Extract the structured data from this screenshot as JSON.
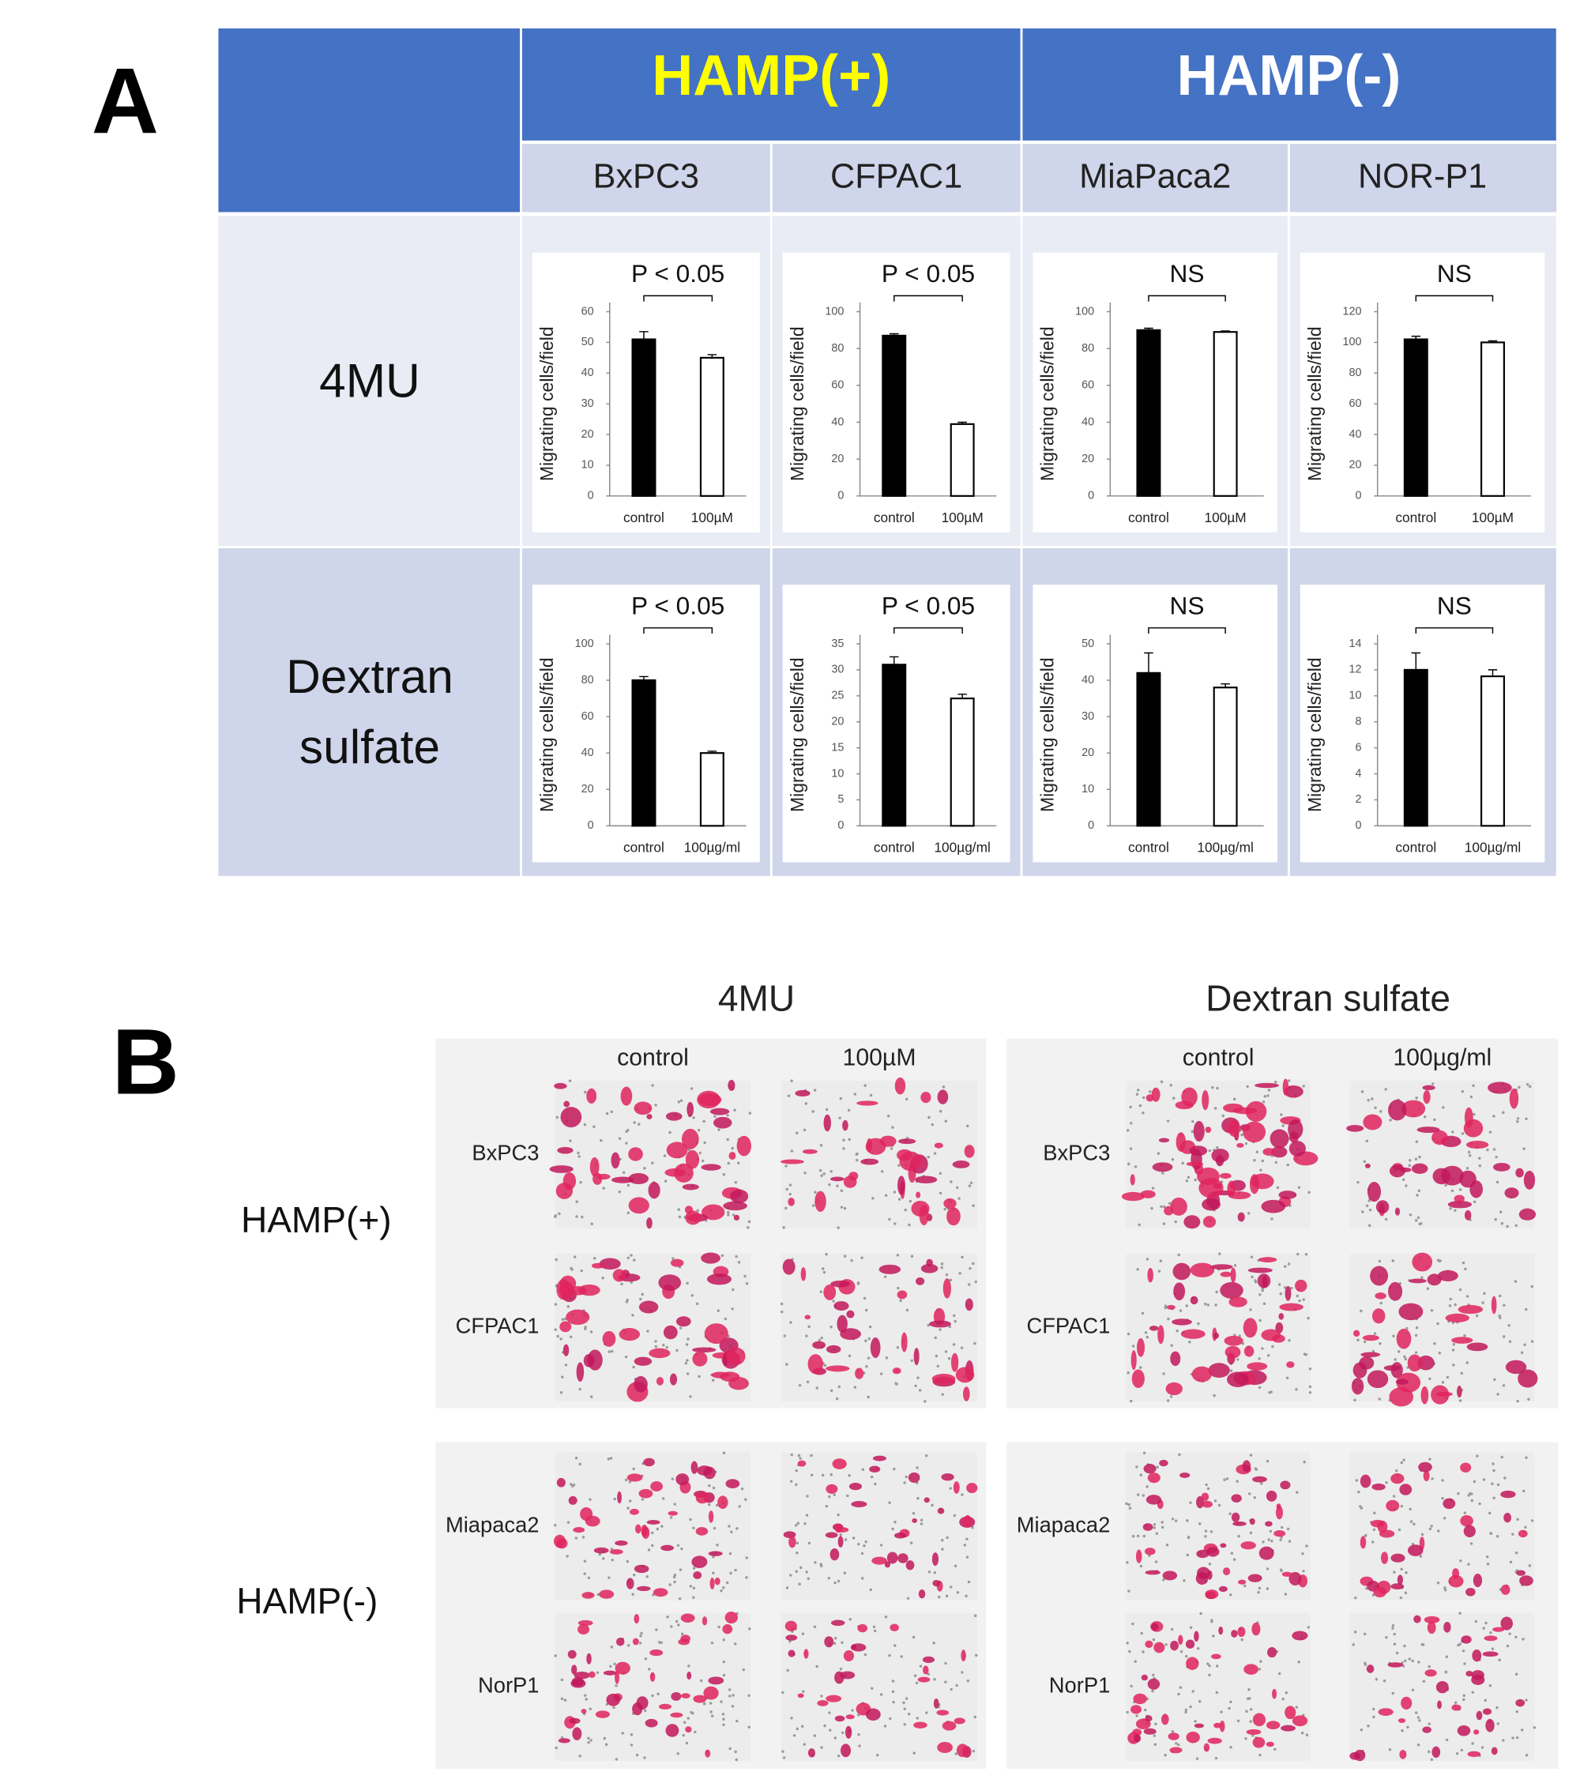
{
  "panel_a": {
    "label": "A",
    "bar_colors": [
      "#000000",
      "#ffffff"
    ],
    "groups": [
      {
        "label": "HAMP(+)",
        "color": "#ffff00"
      },
      {
        "label": "HAMP(-)",
        "color": "#ffffff"
      }
    ],
    "cell_lines": [
      "BxPC3",
      "CFPAC1",
      "MiaPaca2",
      "NOR-P1"
    ],
    "treatments": [
      "4MU",
      "Dextran sulfate"
    ],
    "charts": [
      {
        "type": "bar",
        "y_label": "Migrating cells/field",
        "significance": "P < 0.05",
        "categories": [
          "control",
          "100µM"
        ],
        "values": [
          51,
          45
        ],
        "errors": [
          2.5,
          1
        ],
        "ylim": [
          0,
          60
        ],
        "yticks": [
          0,
          10,
          20,
          30,
          40,
          50,
          60
        ]
      },
      {
        "type": "bar",
        "y_label": "Migrating cells/field",
        "significance": "P < 0.05",
        "categories": [
          "control",
          "100µM"
        ],
        "values": [
          87,
          39
        ],
        "errors": [
          1,
          1
        ],
        "ylim": [
          0,
          100
        ],
        "yticks": [
          0,
          20,
          40,
          60,
          80,
          100
        ]
      },
      {
        "type": "bar",
        "y_label": "Migrating cells/field",
        "significance": "NS",
        "categories": [
          "control",
          "100µM"
        ],
        "values": [
          90,
          89
        ],
        "errors": [
          1,
          0.5
        ],
        "ylim": [
          0,
          100
        ],
        "yticks": [
          0,
          20,
          40,
          60,
          80,
          100
        ]
      },
      {
        "type": "bar",
        "y_label": "Migrating cells/field",
        "significance": "NS",
        "categories": [
          "control",
          "100µM"
        ],
        "values": [
          102,
          100
        ],
        "errors": [
          2,
          1
        ],
        "ylim": [
          0,
          120
        ],
        "yticks": [
          0,
          20,
          40,
          60,
          80,
          100,
          120
        ]
      },
      {
        "type": "bar",
        "y_label": "Migrating cells/field",
        "significance": "P < 0.05",
        "categories": [
          "control",
          "100µg/ml"
        ],
        "values": [
          80,
          40
        ],
        "errors": [
          2,
          1
        ],
        "ylim": [
          0,
          100
        ],
        "yticks": [
          0,
          20,
          40,
          60,
          80,
          100
        ]
      },
      {
        "type": "bar",
        "y_label": "Migrating cells/field",
        "significance": "P < 0.05",
        "categories": [
          "control",
          "100µg/ml"
        ],
        "values": [
          31,
          24.5
        ],
        "errors": [
          1.5,
          0.8
        ],
        "ylim": [
          0,
          35
        ],
        "yticks": [
          0,
          5,
          10,
          15,
          20,
          25,
          30,
          35
        ]
      },
      {
        "type": "bar",
        "y_label": "Migrating cells/field",
        "significance": "NS",
        "categories": [
          "control",
          "100µg/ml"
        ],
        "values": [
          42,
          38
        ],
        "errors": [
          5.5,
          1
        ],
        "ylim": [
          0,
          50
        ],
        "yticks": [
          0,
          10,
          20,
          30,
          40,
          50
        ]
      },
      {
        "type": "bar",
        "y_label": "Migrating cells/field",
        "significance": "NS",
        "categories": [
          "control",
          "100µg/ml"
        ],
        "values": [
          12,
          11.5
        ],
        "errors": [
          1.3,
          0.5
        ],
        "ylim": [
          0,
          14
        ],
        "yticks": [
          0,
          2,
          4,
          6,
          8,
          10,
          12,
          14
        ]
      }
    ]
  },
  "panel_b": {
    "label": "B",
    "groups": [
      "HAMP(+)",
      "HAMP(-)"
    ],
    "panels": [
      {
        "title": "4MU",
        "columns": [
          "control",
          "100µM"
        ],
        "rows": [
          [
            "BxPC3",
            "CFPAC1"
          ],
          [
            "Miapaca2",
            "NorP1"
          ]
        ]
      },
      {
        "title": "Dextran sulfate",
        "columns": [
          "control",
          "100µg/ml"
        ],
        "rows": [
          [
            "BxPC3",
            "CFPAC1"
          ],
          [
            "Miapaca2",
            "NorP1"
          ]
        ]
      }
    ]
  }
}
